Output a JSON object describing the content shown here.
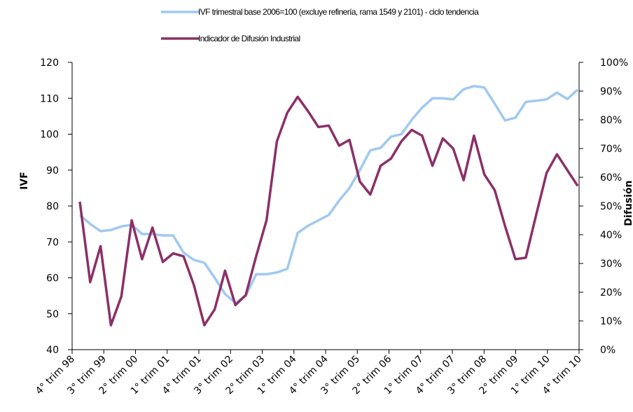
{
  "chart_data": {
    "type": "line",
    "legend_position": "top",
    "grid": false,
    "ylabel": "IVF",
    "y2label": "Difusión",
    "ylim": [
      40,
      120
    ],
    "yticks": [
      40,
      50,
      60,
      70,
      80,
      90,
      100,
      110,
      120
    ],
    "y2lim": [
      0,
      100
    ],
    "y2ticks": [
      "0%",
      "10%",
      "20%",
      "30%",
      "40%",
      "50%",
      "60%",
      "70%",
      "80%",
      "90%",
      "100%"
    ],
    "x_tick_labels": [
      "4° trim 98",
      "3° trim 99",
      "2° trim 00",
      "1° trim 01",
      "4° trim 01",
      "3° trim 02",
      "2° trim 03",
      "1° trim 04",
      "4° trim 04",
      "3° trim 05",
      "2° trim 06",
      "1° trim 07",
      "4° trim 07",
      "3° trim 08",
      "2° trim 09",
      "1° trim 10",
      "4° trim 10"
    ],
    "series": [
      {
        "name": "IVF trimestral base 2006=100 (excluye refinería, rama 1549 y 2101) - ciclo tendencia",
        "axis": "left",
        "color": "#9fc9f2",
        "values": [
          77.5,
          75,
          73,
          73.3,
          74.3,
          74.8,
          72.2,
          72.2,
          71.8,
          71.8,
          67,
          65,
          64.2,
          60,
          55.5,
          53,
          55,
          61,
          61,
          61.5,
          62.5,
          72.5,
          74.5,
          76,
          77.5,
          81.5,
          85,
          90,
          95.5,
          96.2,
          99.3,
          100,
          104,
          107.4,
          110,
          110,
          109.7,
          112.5,
          113.4,
          113,
          108.5,
          103.8,
          104.6,
          109,
          109.3,
          109.7,
          111.6,
          109.8,
          112.4
        ]
      },
      {
        "name": "Indicador de Difusión Industrial",
        "axis": "right",
        "color": "#8b3067",
        "values": [
          51.5,
          23.5,
          36,
          8.5,
          18.5,
          45,
          31.5,
          42.5,
          30.5,
          33.5,
          32.5,
          22.5,
          8.5,
          14,
          27.5,
          15.5,
          19,
          32.5,
          45,
          72.5,
          82.5,
          88,
          83,
          77.5,
          78,
          71,
          73,
          58.5,
          54,
          64,
          66.5,
          72.5,
          76.5,
          74.5,
          64,
          73.5,
          70,
          59,
          74.5,
          61,
          55.5,
          43,
          31.5,
          32,
          47,
          61.5,
          68,
          62.5,
          57
        ]
      }
    ]
  }
}
